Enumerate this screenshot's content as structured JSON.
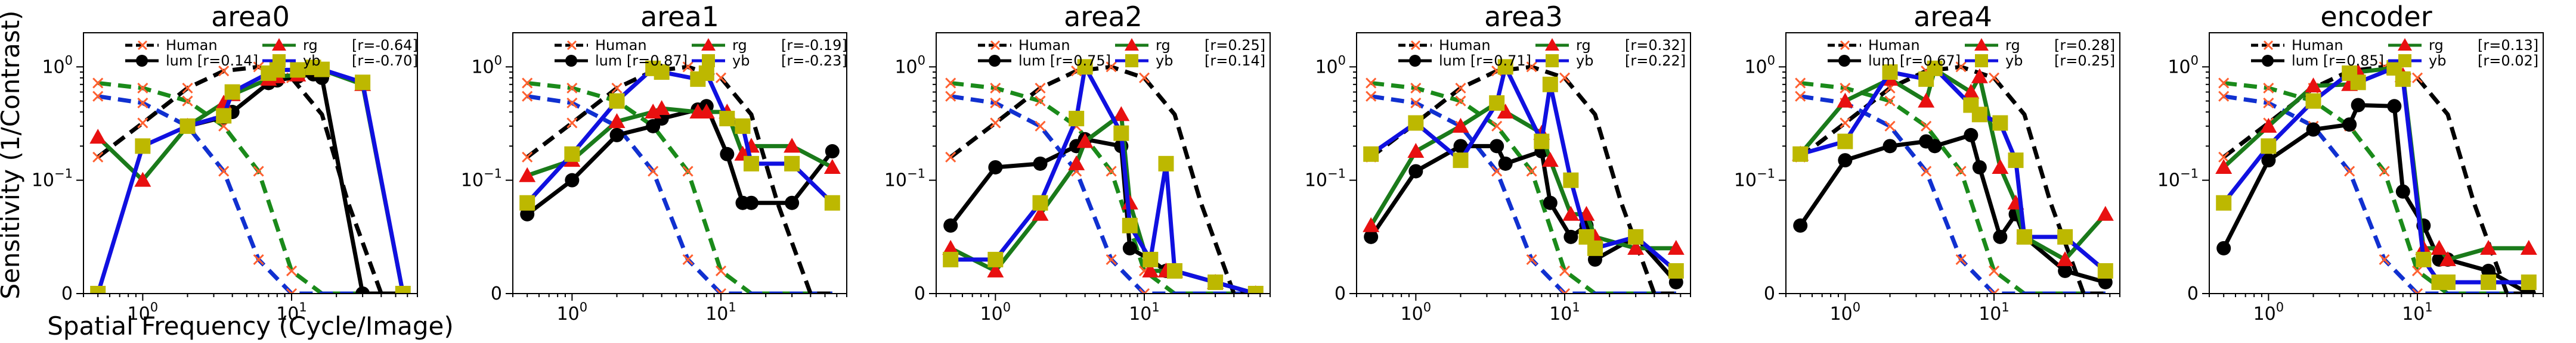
{
  "figure": {
    "ylabel": "Sensitivity (1/Contrast)",
    "xlabel": "Spatial Frequency (Cycle/Image)"
  },
  "colors": {
    "human_lum": "#000000",
    "human_rg": "#1a8a1a",
    "human_yb": "#1030d0",
    "lum": "#000000",
    "rg": "#1a7a1a",
    "rg_marker": "#e81010",
    "yb": "#1010e0",
    "yb_marker": "#bdb800",
    "human_marker": "#ff6030"
  },
  "chart_data": [
    {
      "type": "line",
      "title": "area0",
      "xscale": "log",
      "yscale": "symlog",
      "xlim": [
        0.4,
        70
      ],
      "ylim": [
        0,
        2
      ],
      "xticks": [
        "10^0",
        "10^1"
      ],
      "yticks": [
        "0",
        "10^-1",
        "10^0"
      ],
      "legend": {
        "human": "Human",
        "lum": "lum [r=0.14]",
        "rg": "rg",
        "rg_r": "[r=-0.64]",
        "yb": "yb",
        "yb_r": "[r=-0.70]"
      },
      "x": [
        0.5,
        1.0,
        2.0,
        3.5,
        4.0,
        7.0,
        8.0,
        11.0,
        14.0,
        16.0,
        30.0,
        56.0
      ],
      "series": [
        {
          "name": "lum",
          "values": [
            null,
            null,
            0.3,
            0.36,
            0.4,
            0.72,
            0.76,
            0.82,
            0.86,
            0.8,
            0,
            0
          ]
        },
        {
          "name": "rg",
          "values": [
            0.24,
            0.1,
            0.3,
            0.48,
            0.57,
            0.78,
            0.82,
            0.85,
            0.97,
            0.94,
            0.7,
            0
          ]
        },
        {
          "name": "yb",
          "values": [
            0,
            0.2,
            0.3,
            0.37,
            0.6,
            0.88,
            0.94,
            0.94,
            0.99,
            0.95,
            0.73,
            0
          ]
        }
      ]
    },
    {
      "type": "line",
      "title": "area1",
      "xscale": "log",
      "yscale": "symlog",
      "xlim": [
        0.4,
        70
      ],
      "ylim": [
        0,
        2
      ],
      "xticks": [
        "10^0",
        "10^1"
      ],
      "yticks": [
        "0",
        "10^-1",
        "10^0"
      ],
      "legend": {
        "human": "Human",
        "lum": "lum [r=0.87]",
        "rg": "rg",
        "rg_r": "[r=-0.19]",
        "yb": "yb",
        "yb_r": "[r=-0.23]"
      },
      "x": [
        0.5,
        1.0,
        2.0,
        3.5,
        4.0,
        7.0,
        8.0,
        11.0,
        14.0,
        16.0,
        30.0,
        56.0
      ],
      "series": [
        {
          "name": "lum",
          "values": [
            0.07,
            0.1,
            0.25,
            0.3,
            0.35,
            0.42,
            0.45,
            0.17,
            0.08,
            0.08,
            0.08,
            0.18
          ]
        },
        {
          "name": "rg",
          "values": [
            0.11,
            0.15,
            0.33,
            0.4,
            0.43,
            0.4,
            0.4,
            0.4,
            0.17,
            0.2,
            0.2,
            0.13
          ]
        },
        {
          "name": "yb",
          "values": [
            0.08,
            0.17,
            0.5,
            0.97,
            0.9,
            0.78,
            0.88,
            0.35,
            0.3,
            0.14,
            0.14,
            0.08
          ]
        }
      ]
    },
    {
      "type": "line",
      "title": "area2",
      "xscale": "log",
      "yscale": "symlog",
      "xlim": [
        0.4,
        70
      ],
      "ylim": [
        0,
        2
      ],
      "xticks": [
        "10^0",
        "10^1"
      ],
      "yticks": [
        "0",
        "10^-1",
        "10^0"
      ],
      "legend": {
        "human": "Human",
        "lum": "lum [r=0.75]",
        "rg": "rg",
        "rg_r": "[r=0.25]",
        "yb": "yb",
        "yb_r": "[r=0.14]"
      },
      "x": [
        0.5,
        1.0,
        2.0,
        3.5,
        4.0,
        7.0,
        8.0,
        11.0,
        14.0,
        16.0,
        30.0,
        56.0
      ],
      "series": [
        {
          "name": "lum",
          "values": [
            0.06,
            0.13,
            0.14,
            0.2,
            0.23,
            0.2,
            0.04,
            0.03,
            0.02,
            0.02,
            0.01,
            0
          ]
        },
        {
          "name": "rg",
          "values": [
            0.04,
            0.02,
            0.07,
            0.14,
            0.22,
            0.38,
            0.08,
            0.02,
            0.02,
            0.02,
            0.01,
            0
          ]
        },
        {
          "name": "yb",
          "values": [
            0.03,
            0.03,
            0.08,
            0.35,
            1.0,
            0.26,
            0.06,
            0.03,
            0.14,
            0.02,
            0.01,
            0
          ]
        }
      ]
    },
    {
      "type": "line",
      "title": "area3",
      "xscale": "log",
      "yscale": "symlog",
      "xlim": [
        0.4,
        70
      ],
      "ylim": [
        0,
        2
      ],
      "xticks": [
        "10^0",
        "10^1"
      ],
      "yticks": [
        "0",
        "10^-1",
        "10^0"
      ],
      "legend": {
        "human": "Human",
        "lum": "lum [r=0.71]",
        "rg": "rg",
        "rg_r": "[r=0.32]",
        "yb": "yb",
        "yb_r": "[r=0.22]"
      },
      "x": [
        0.5,
        1.0,
        2.0,
        3.5,
        4.0,
        7.0,
        8.0,
        11.0,
        14.0,
        16.0,
        30.0,
        56.0
      ],
      "series": [
        {
          "name": "lum",
          "values": [
            0.05,
            0.12,
            0.2,
            0.2,
            0.14,
            0.18,
            0.08,
            0.05,
            0.06,
            0.03,
            0.05,
            0.01
          ]
        },
        {
          "name": "rg",
          "values": [
            0.06,
            0.18,
            0.3,
            0.48,
            0.4,
            0.26,
            0.15,
            0.07,
            0.07,
            0.05,
            0.04,
            0.04
          ]
        },
        {
          "name": "yb",
          "values": [
            0.17,
            0.32,
            0.15,
            0.48,
            1.0,
            0.22,
            0.7,
            0.1,
            0.05,
            0.04,
            0.05,
            0.02
          ]
        }
      ]
    },
    {
      "type": "line",
      "title": "area4",
      "xscale": "log",
      "yscale": "symlog",
      "xlim": [
        0.4,
        70
      ],
      "ylim": [
        0,
        2
      ],
      "xticks": [
        "10^0",
        "10^1"
      ],
      "yticks": [
        "0",
        "10^-1",
        "10^0"
      ],
      "legend": {
        "human": "Human",
        "lum": "lum [r=0.67]",
        "rg": "rg",
        "rg_r": "[r=0.28]",
        "yb": "yb",
        "yb_r": "[r=0.25]"
      },
      "x": [
        0.5,
        1.0,
        2.0,
        3.5,
        4.0,
        7.0,
        8.0,
        11.0,
        14.0,
        16.0,
        30.0,
        56.0
      ],
      "series": [
        {
          "name": "lum",
          "values": [
            0.06,
            0.15,
            0.2,
            0.22,
            0.2,
            0.25,
            0.13,
            0.05,
            0.07,
            0.05,
            0.02,
            0.01
          ]
        },
        {
          "name": "rg",
          "values": [
            0.17,
            0.5,
            0.78,
            0.5,
            0.95,
            0.6,
            0.82,
            0.13,
            0.08,
            0.05,
            0.03,
            0.07
          ]
        },
        {
          "name": "yb",
          "values": [
            0.17,
            0.22,
            0.9,
            0.78,
            0.97,
            0.46,
            0.38,
            0.32,
            0.15,
            0.05,
            0.05,
            0.02
          ]
        }
      ]
    },
    {
      "type": "line",
      "title": "encoder",
      "xscale": "log",
      "yscale": "symlog",
      "xlim": [
        0.4,
        70
      ],
      "ylim": [
        0,
        2
      ],
      "xticks": [
        "10^0",
        "10^1"
      ],
      "yticks": [
        "0",
        "10^-1",
        "10^0"
      ],
      "legend": {
        "human": "Human",
        "lum": "lum [r=0.85]",
        "rg": "rg",
        "rg_r": "[r=0.13]",
        "yb": "yb",
        "yb_r": "[r=0.02]"
      },
      "x": [
        0.5,
        1.0,
        2.0,
        3.5,
        4.0,
        7.0,
        8.0,
        11.0,
        14.0,
        16.0,
        30.0,
        56.0
      ],
      "series": [
        {
          "name": "lum",
          "values": [
            0.04,
            0.15,
            0.28,
            0.31,
            0.46,
            0.45,
            0.09,
            0.06,
            0.03,
            0.03,
            0.02,
            0
          ]
        },
        {
          "name": "rg",
          "values": [
            0.13,
            0.3,
            0.68,
            0.7,
            0.9,
            0.98,
            0.84,
            0.04,
            0.04,
            0.03,
            0.04,
            0.04
          ]
        },
        {
          "name": "yb",
          "values": [
            0.08,
            0.2,
            0.5,
            0.88,
            0.73,
            0.98,
            0.78,
            0.03,
            0.01,
            0.01,
            0.01,
            0.01
          ]
        }
      ]
    }
  ],
  "human_reference": {
    "note_values_are_data_units": true,
    "lum": {
      "x": [
        0.5,
        1.0,
        2.0,
        3.5,
        6.0,
        10.0,
        16.0,
        24.0,
        40.0,
        56.0
      ],
      "values": [
        0.16,
        0.32,
        0.65,
        0.92,
        1.0,
        0.8,
        0.38,
        0.08,
        0.0,
        0.0
      ]
    },
    "rg": {
      "x": [
        0.5,
        1.0,
        2.0,
        3.5,
        6.0,
        10.0,
        16.0,
        24.0,
        40.0,
        56.0
      ],
      "values": [
        0.72,
        0.65,
        0.5,
        0.3,
        0.12,
        0.02,
        0.0,
        0.0,
        0.0,
        0.0
      ]
    },
    "yb": {
      "x": [
        0.5,
        1.0,
        2.0,
        3.5,
        6.0,
        10.0,
        16.0,
        24.0,
        40.0,
        56.0
      ],
      "values": [
        0.55,
        0.48,
        0.3,
        0.12,
        0.03,
        0.0,
        0.0,
        0.0,
        0.0,
        0.0
      ]
    }
  }
}
